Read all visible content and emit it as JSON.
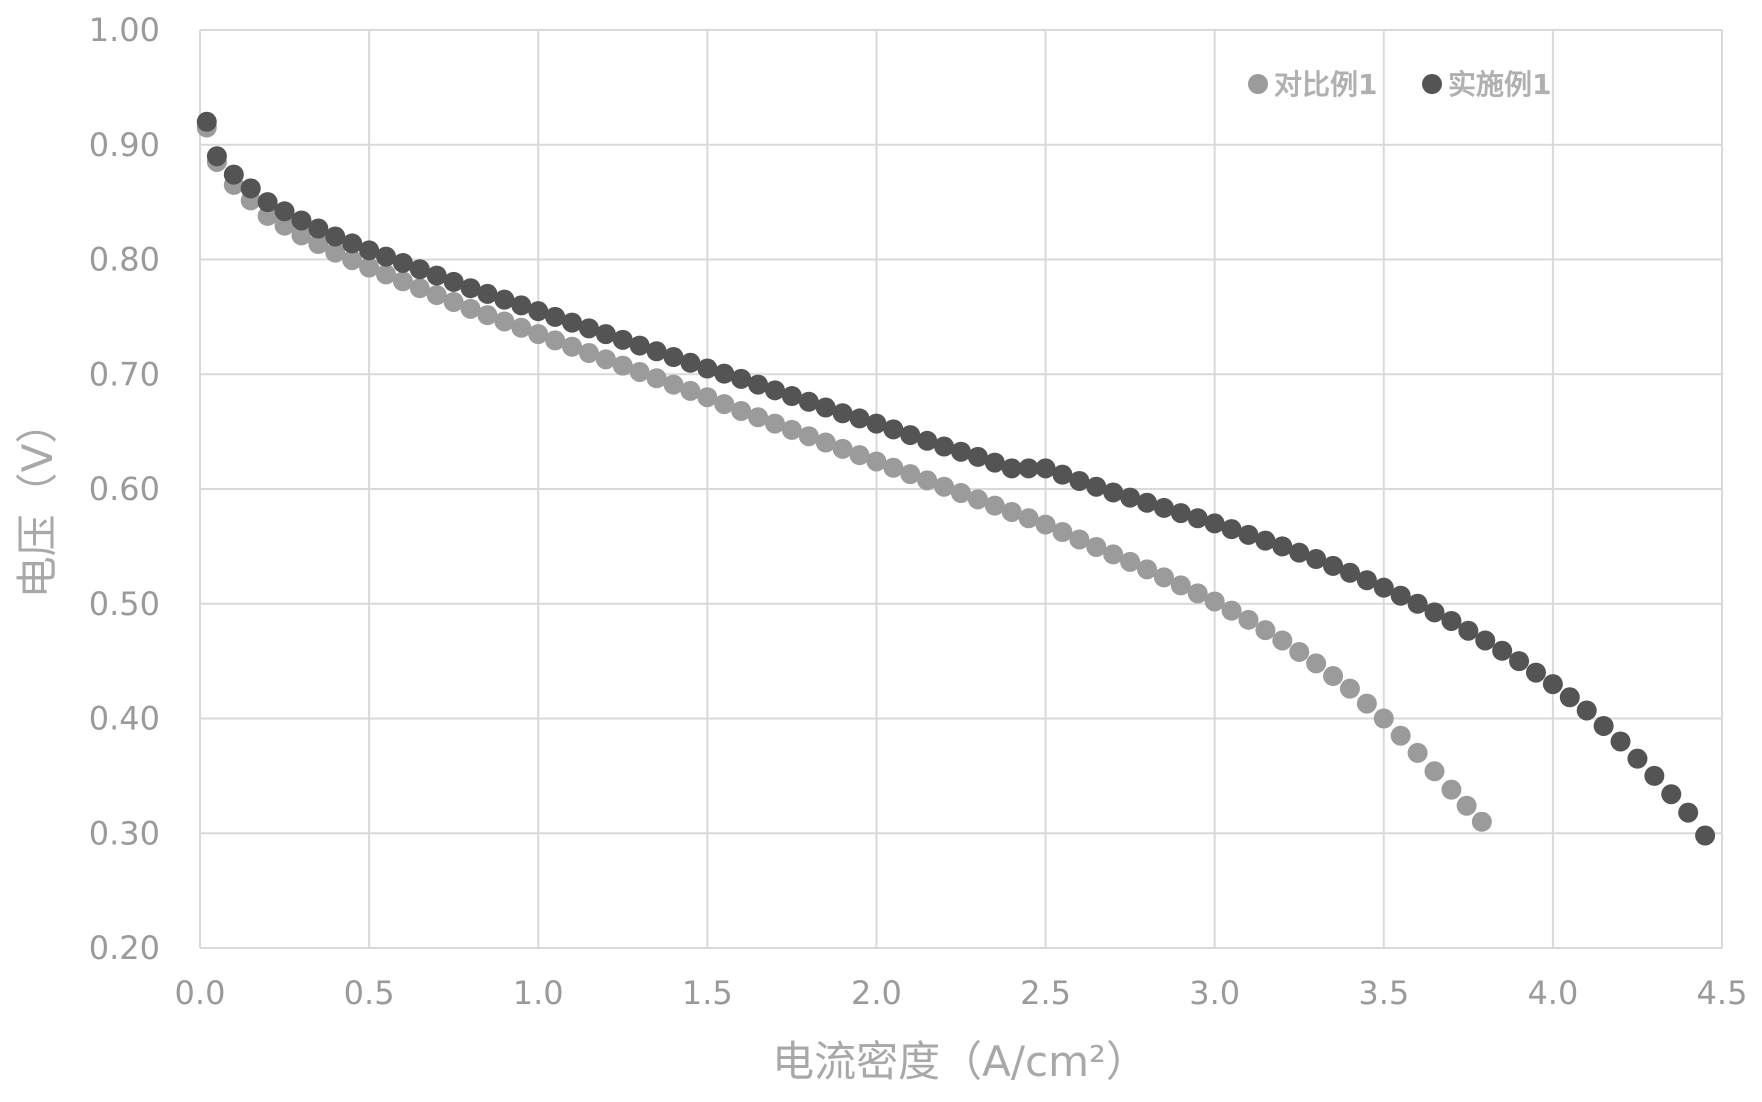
{
  "chart_data": {
    "type": "scatter",
    "xlabel": "电流密度（A/cm²）",
    "ylabel": "电压（V）",
    "xlim": [
      0,
      4.5
    ],
    "ylim": [
      0.2,
      1.0
    ],
    "x_ticks": [
      "0.0",
      "0.5",
      "1.0",
      "1.5",
      "2.0",
      "2.5",
      "3.0",
      "3.5",
      "4.0",
      "4.5"
    ],
    "y_ticks": [
      "0.20",
      "0.30",
      "0.40",
      "0.50",
      "0.60",
      "0.70",
      "0.80",
      "0.90",
      "1.00"
    ],
    "grid": true,
    "legend_position": "top-right",
    "series": [
      {
        "name": "对比例1",
        "color": "#9b9b9b",
        "points": [
          [
            0.02,
            0.915
          ],
          [
            0.05,
            0.885
          ],
          [
            0.1,
            0.865
          ],
          [
            0.2,
            0.838
          ],
          [
            0.3,
            0.821
          ],
          [
            0.4,
            0.806
          ],
          [
            0.5,
            0.793
          ],
          [
            0.6,
            0.781
          ],
          [
            0.7,
            0.769
          ],
          [
            0.8,
            0.757
          ],
          [
            0.9,
            0.746
          ],
          [
            1.0,
            0.735
          ],
          [
            1.1,
            0.724
          ],
          [
            1.2,
            0.713
          ],
          [
            1.3,
            0.702
          ],
          [
            1.4,
            0.691
          ],
          [
            1.5,
            0.68
          ],
          [
            1.6,
            0.668
          ],
          [
            1.7,
            0.657
          ],
          [
            1.8,
            0.646
          ],
          [
            1.9,
            0.635
          ],
          [
            2.0,
            0.624
          ],
          [
            2.1,
            0.613
          ],
          [
            2.2,
            0.602
          ],
          [
            2.3,
            0.591
          ],
          [
            2.4,
            0.58
          ],
          [
            2.5,
            0.569
          ],
          [
            2.6,
            0.556
          ],
          [
            2.7,
            0.543
          ],
          [
            2.8,
            0.53
          ],
          [
            2.9,
            0.516
          ],
          [
            3.0,
            0.502
          ],
          [
            3.1,
            0.486
          ],
          [
            3.2,
            0.468
          ],
          [
            3.3,
            0.448
          ],
          [
            3.4,
            0.426
          ],
          [
            3.5,
            0.4
          ],
          [
            3.6,
            0.37
          ],
          [
            3.7,
            0.338
          ],
          [
            3.79,
            0.31
          ]
        ]
      },
      {
        "name": "实施例1",
        "color": "#545454",
        "points": [
          [
            0.02,
            0.92
          ],
          [
            0.05,
            0.89
          ],
          [
            0.1,
            0.874
          ],
          [
            0.2,
            0.85
          ],
          [
            0.3,
            0.834
          ],
          [
            0.4,
            0.82
          ],
          [
            0.5,
            0.808
          ],
          [
            0.6,
            0.797
          ],
          [
            0.7,
            0.786
          ],
          [
            0.8,
            0.775
          ],
          [
            0.9,
            0.765
          ],
          [
            1.0,
            0.755
          ],
          [
            1.1,
            0.745
          ],
          [
            1.2,
            0.735
          ],
          [
            1.3,
            0.725
          ],
          [
            1.4,
            0.715
          ],
          [
            1.5,
            0.705
          ],
          [
            1.6,
            0.696
          ],
          [
            1.7,
            0.686
          ],
          [
            1.8,
            0.676
          ],
          [
            1.9,
            0.666
          ],
          [
            2.0,
            0.657
          ],
          [
            2.1,
            0.647
          ],
          [
            2.2,
            0.637
          ],
          [
            2.3,
            0.628
          ],
          [
            2.4,
            0.618
          ],
          [
            2.5,
            0.618
          ],
          [
            2.6,
            0.607
          ],
          [
            2.7,
            0.597
          ],
          [
            2.8,
            0.588
          ],
          [
            2.9,
            0.579
          ],
          [
            3.0,
            0.57
          ],
          [
            3.1,
            0.56
          ],
          [
            3.2,
            0.55
          ],
          [
            3.3,
            0.539
          ],
          [
            3.4,
            0.527
          ],
          [
            3.5,
            0.514
          ],
          [
            3.6,
            0.5
          ],
          [
            3.7,
            0.485
          ],
          [
            3.8,
            0.468
          ],
          [
            3.9,
            0.45
          ],
          [
            4.0,
            0.43
          ],
          [
            4.1,
            0.407
          ],
          [
            4.2,
            0.38
          ],
          [
            4.3,
            0.35
          ],
          [
            4.4,
            0.318
          ],
          [
            4.45,
            0.298
          ]
        ]
      }
    ]
  }
}
